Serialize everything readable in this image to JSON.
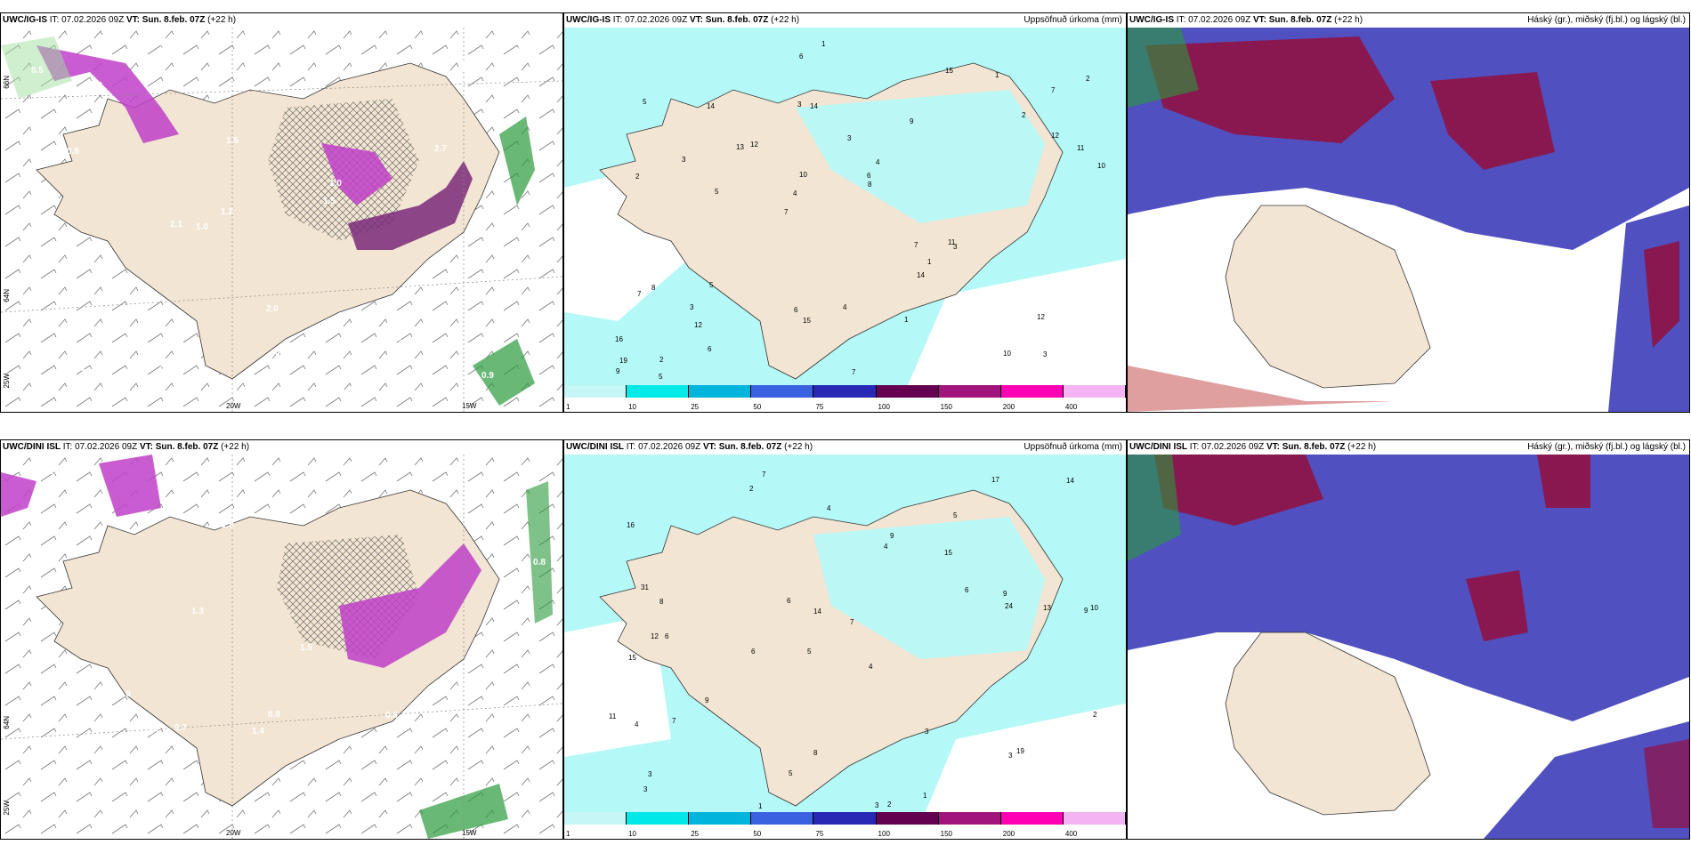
{
  "panels": [
    {
      "id": "p1",
      "title_prefix": "UWC/IG-IS",
      "title_mid": " IT: 07.02.2026 09Z ",
      "title_vt": "VT: Sun. 8.feb. 07Z",
      "title_suffix": " (+22 h)",
      "right": ""
    },
    {
      "id": "p2",
      "title_prefix": "UWC/IG-IS",
      "title_mid": " IT: 07.02.2026 09Z ",
      "title_vt": "VT: Sun. 8.feb. 07Z",
      "title_suffix": " (+22 h)",
      "right": "Uppsöfnuð úrkoma (mm)"
    },
    {
      "id": "p3",
      "title_prefix": "UWC/IG-IS",
      "title_mid": " IT: 07.02.2026 09Z ",
      "title_vt": "VT: Sun. 8.feb. 07Z",
      "title_suffix": " (+22 h)",
      "right": "Háský (gr.), miðský (fj.bl.) og lágský (bl.)"
    },
    {
      "id": "p4",
      "title_prefix": "UWC/DINI ISL",
      "title_mid": " IT: 07.02.2026 09Z ",
      "title_vt": "VT: Sun. 8.feb. 07Z",
      "title_suffix": " (+22 h)",
      "right": ""
    },
    {
      "id": "p5",
      "title_prefix": "UWC/DINI ISL",
      "title_mid": " IT: 07.02.2026 09Z ",
      "title_vt": "VT: Sun. 8.feb. 07Z",
      "title_suffix": " (+22 h)",
      "right": "Uppsöfnuð úrkoma (mm)"
    },
    {
      "id": "p6",
      "title_prefix": "UWC/DINI ISL",
      "title_mid": " IT: 07.02.2026 09Z ",
      "title_vt": "VT: Sun. 8.feb. 07Z",
      "title_suffix": " (+22 h)",
      "right": "Háský (gr.), miðský (fj.bl.) og lágský (bl.)"
    }
  ],
  "axis_labels": {
    "lon_20w": "20W",
    "lon_15w": "15W",
    "lat_66n": "66N",
    "lat_64n": "64N",
    "lon_25w": "25W"
  },
  "colorbar": {
    "labels": [
      "1",
      "10",
      "25",
      "50",
      "75",
      "100",
      "150",
      "200",
      "400"
    ],
    "colors": [
      "#c6f6f6",
      "#00e8e8",
      "#00b4dc",
      "#3a62e0",
      "#2828b4",
      "#640050",
      "#a0147c",
      "#ff00b4",
      "#f4b4f4"
    ]
  },
  "precip_labels_top": [
    "3",
    "2",
    "7",
    "7",
    "9",
    "2",
    "3",
    "3",
    "8",
    "12",
    "16",
    "12",
    "14",
    "4",
    "3",
    "5",
    "6",
    "10",
    "7",
    "12",
    "4",
    "6",
    "10",
    "14",
    "15",
    "5",
    "10",
    "12",
    "11",
    "7",
    "13",
    "3",
    "14",
    "6",
    "11",
    "6",
    "19",
    "15",
    "8",
    "7",
    "2",
    "2",
    "1",
    "1",
    "3",
    "5",
    "9",
    "4",
    "1",
    "1",
    "5"
  ],
  "precip_labels_bottom": [
    "7",
    "5",
    "9",
    "5",
    "4",
    "6",
    "16",
    "15",
    "15",
    "4",
    "7",
    "3",
    "2",
    "6",
    "3",
    "2",
    "8",
    "17",
    "6",
    "9",
    "8",
    "12",
    "10",
    "13",
    "11",
    "31",
    "14",
    "24",
    "19",
    "4",
    "3",
    "9",
    "7",
    "6",
    "3",
    "2",
    "9",
    "5",
    "14",
    "4",
    "3",
    "1",
    "1"
  ],
  "snow_labels_top": [
    "0.3",
    "1.0",
    "1.5",
    "0.9",
    "1.1",
    "1.8",
    "2.1",
    "0.9",
    "0.7",
    "1.5",
    "1.2",
    "0.7",
    "1.2",
    "2.0",
    "0.5",
    "1.5",
    "0.8",
    "0.9",
    "1.0",
    "0.5",
    "0.4",
    "0.5",
    "1.0",
    "1.4",
    "2.7"
  ],
  "snow_labels_bottom": [
    "0.5",
    "1.2",
    "2.2",
    "2.3",
    "0.8",
    "0.6",
    "1.8",
    "0.7",
    "0.8",
    "0.6",
    "0.5",
    "1.5",
    "0.7",
    "0.9",
    "0.8",
    "1.3",
    "1.4",
    "2.2"
  ],
  "colors": {
    "land": "#f2e5d3",
    "snow_magenta": "#c040c8",
    "snow_dark": "#7a2a7a",
    "green": "#9fe09f",
    "dkgreen": "#2a9a3a",
    "cyan": "#b4f8f8",
    "cyan_mid": "#40e0e0",
    "cloud_high": "#8a1850",
    "cloud_mid": "#5050c0",
    "cloud_low": "#3a3ab0"
  }
}
